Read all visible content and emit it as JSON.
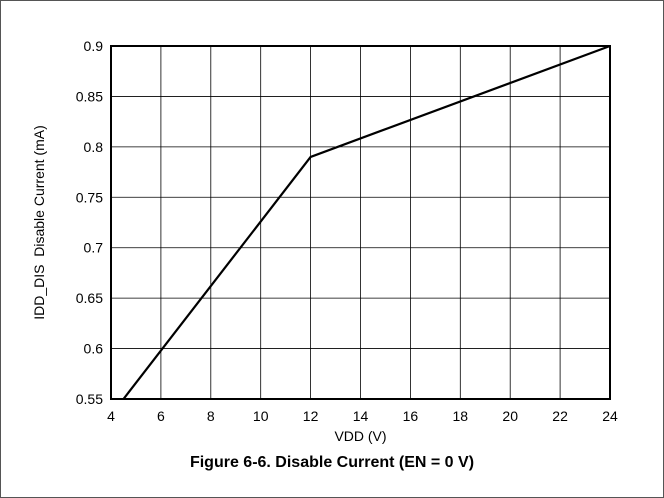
{
  "figure": {
    "caption": "Figure 6-6. Disable Current (EN = 0 V)"
  },
  "chart_data": {
    "type": "line",
    "title": "",
    "xlabel": "VDD (V)",
    "ylabel": "IDD_DIS  Disable Current (mA)",
    "xlim": [
      4,
      24
    ],
    "ylim": [
      0.55,
      0.9
    ],
    "xticks": [
      4,
      6,
      8,
      10,
      12,
      14,
      16,
      18,
      20,
      22,
      24
    ],
    "xtick_labels": [
      "4",
      "6",
      "8",
      "10",
      "12",
      "14",
      "16",
      "18",
      "20",
      "22",
      "24"
    ],
    "yticks": [
      0.55,
      0.6,
      0.65,
      0.7,
      0.75,
      0.8,
      0.85,
      0.9
    ],
    "ytick_labels": [
      "0.55",
      "0.6",
      "0.65",
      "0.7",
      "0.75",
      "0.8",
      "0.85",
      "0.9"
    ],
    "grid": true,
    "series": [
      {
        "x": [
          4.5,
          12,
          24
        ],
        "y": [
          0.55,
          0.79,
          0.9
        ],
        "color": "#000000"
      }
    ]
  }
}
